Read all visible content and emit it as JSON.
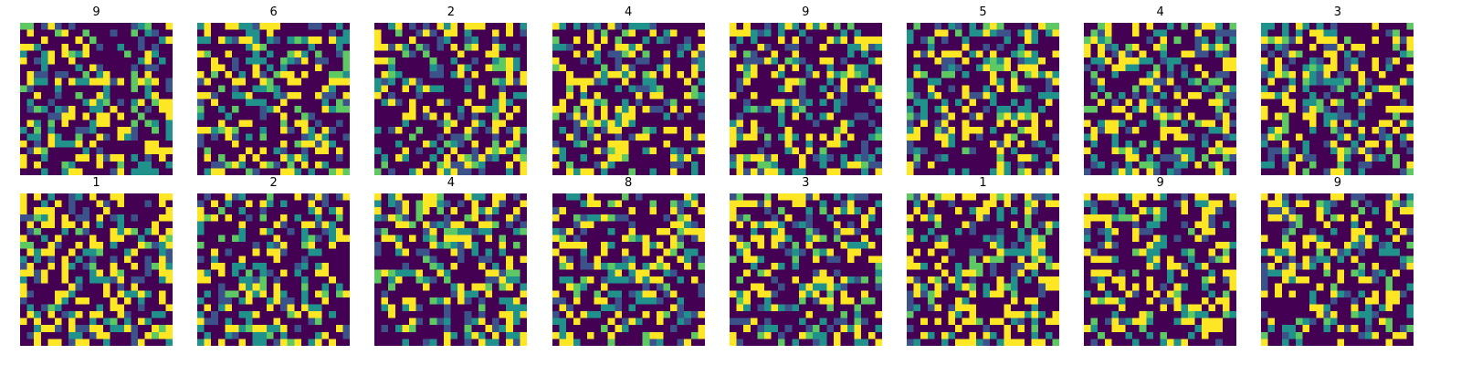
{
  "chart_data": {
    "type": "heatmap",
    "colormap": "viridis",
    "colors": [
      "#440154",
      "#3b528b",
      "#21918c",
      "#5ec962",
      "#fde725"
    ],
    "grid": false,
    "axes_visible": false,
    "grid_size": 22,
    "rows": 2,
    "cols": 8,
    "panels": [
      {
        "title": "9",
        "seed": 9101
      },
      {
        "title": "6",
        "seed": 6202
      },
      {
        "title": "2",
        "seed": 2303
      },
      {
        "title": "4",
        "seed": 4404
      },
      {
        "title": "9",
        "seed": 9505
      },
      {
        "title": "5",
        "seed": 5606
      },
      {
        "title": "4",
        "seed": 4707
      },
      {
        "title": "3",
        "seed": 3808
      },
      {
        "title": "1",
        "seed": 1909
      },
      {
        "title": "2",
        "seed": 2010
      },
      {
        "title": "4",
        "seed": 4111
      },
      {
        "title": "8",
        "seed": 8212
      },
      {
        "title": "3",
        "seed": 3313
      },
      {
        "title": "1",
        "seed": 1414
      },
      {
        "title": "9",
        "seed": 9515
      },
      {
        "title": "9",
        "seed": 9616
      }
    ]
  }
}
